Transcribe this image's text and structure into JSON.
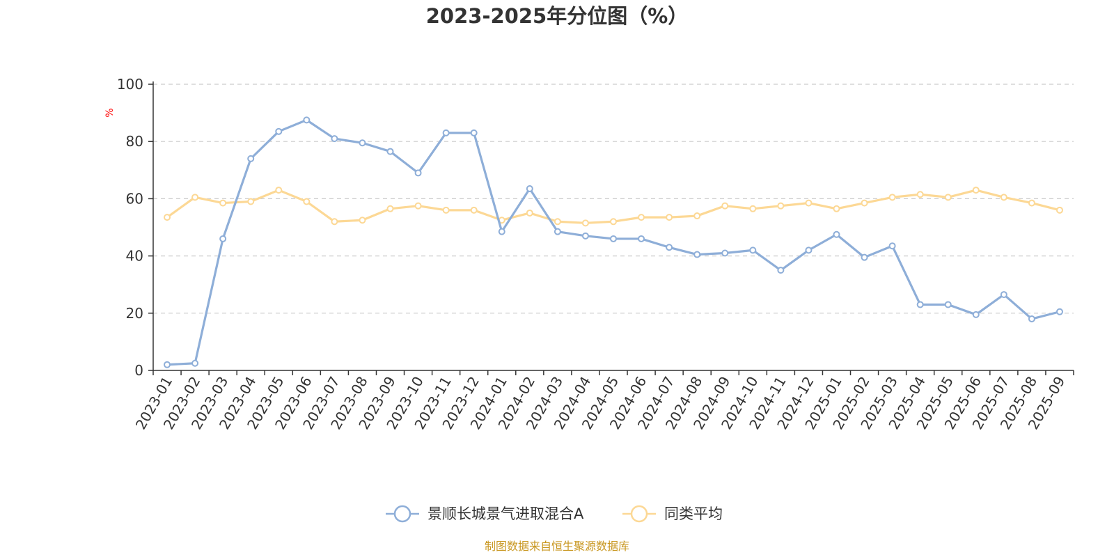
{
  "chart_data": {
    "type": "line",
    "title": "2023-2025年分位图（%）",
    "ylabel": "%",
    "xlabel": "",
    "ylim": [
      0,
      100
    ],
    "yticks": [
      0,
      20,
      40,
      60,
      80,
      100
    ],
    "grid": true,
    "legend_position": "bottom-center",
    "source": "制图数据来自恒生聚源数据库",
    "categories": [
      "2023-01",
      "2023-02",
      "2023-03",
      "2023-04",
      "2023-05",
      "2023-06",
      "2023-07",
      "2023-08",
      "2023-09",
      "2023-10",
      "2023-11",
      "2023-12",
      "2024-01",
      "2024-02",
      "2024-03",
      "2024-04",
      "2024-05",
      "2024-06",
      "2024-07",
      "2024-08",
      "2024-09",
      "2024-10",
      "2024-11",
      "2024-12",
      "2025-01",
      "2025-02",
      "2025-03",
      "2025-04",
      "2025-05",
      "2025-06",
      "2025-07",
      "2025-08",
      "2025-09"
    ],
    "series": [
      {
        "name": "景顺长城景气进取混合A",
        "color": "#8eaed8",
        "values": [
          2,
          2.5,
          46,
          74,
          83.5,
          87.5,
          81,
          79.5,
          76.5,
          69,
          83,
          83,
          48.5,
          63.5,
          48.5,
          47,
          46,
          46,
          43,
          40.5,
          41,
          42,
          35,
          42,
          47.5,
          39.5,
          43.5,
          23,
          23,
          19.5,
          26.5,
          18,
          20.5
        ]
      },
      {
        "name": "同类平均",
        "color": "#fcd895",
        "values": [
          53.5,
          60.5,
          58.5,
          59,
          63,
          59,
          52,
          52.5,
          56.5,
          57.5,
          56,
          56,
          52.5,
          55,
          52,
          51.5,
          52,
          53.5,
          53.5,
          54,
          57.5,
          56.5,
          57.5,
          58.5,
          56.5,
          58.5,
          60.5,
          61.5,
          60.5,
          63,
          60.5,
          58.5,
          56
        ]
      }
    ]
  }
}
